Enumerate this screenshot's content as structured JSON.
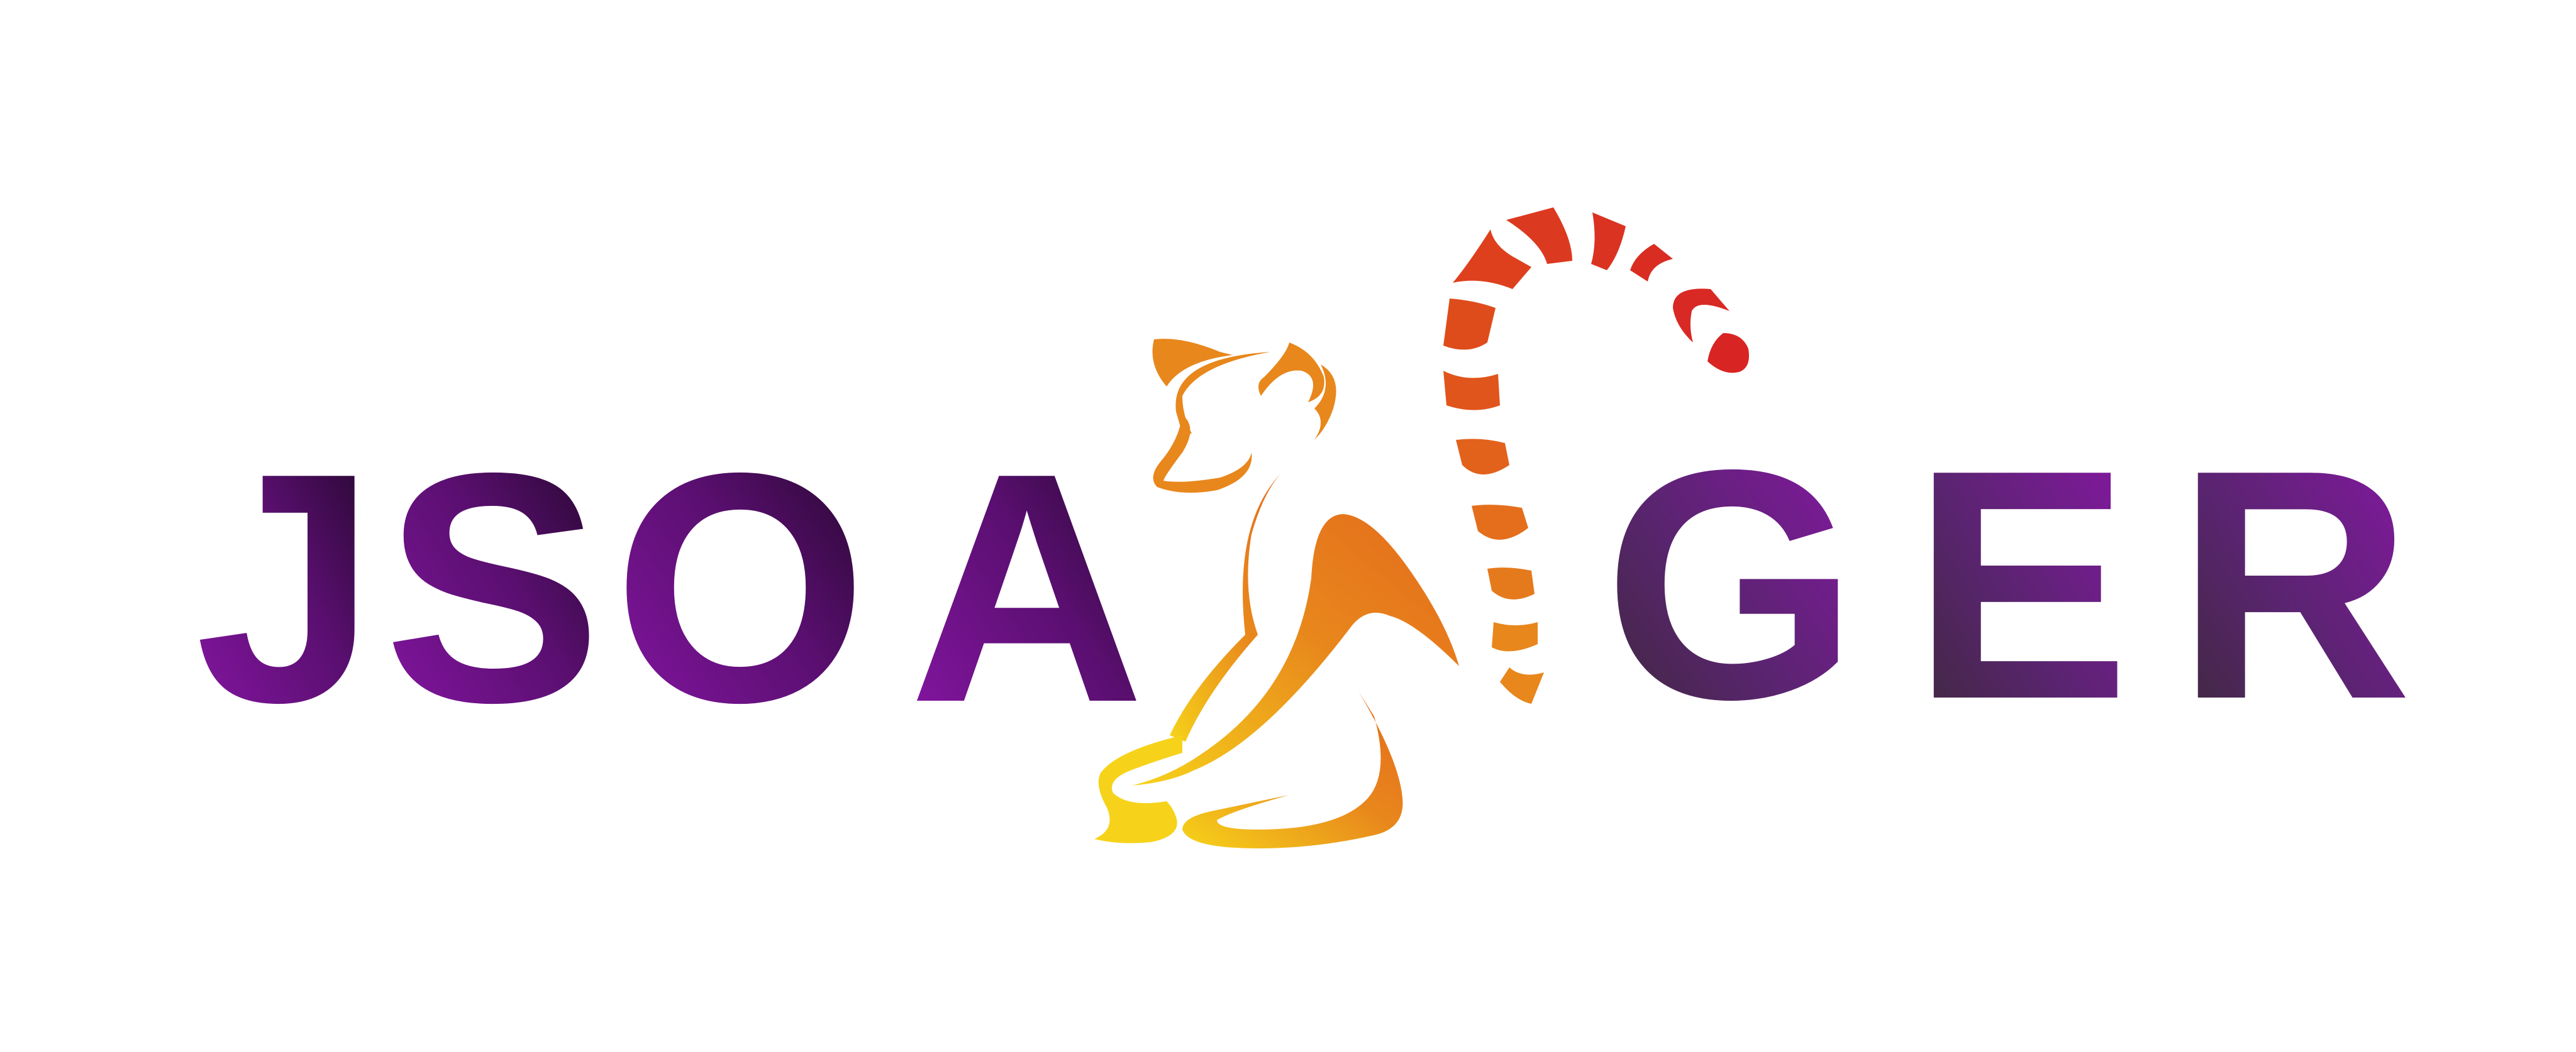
{
  "logo": {
    "wordmark": "JSOAGER",
    "letters": [
      "J",
      "S",
      "O",
      "A",
      "G",
      "E",
      "R"
    ],
    "mark": "lemur-icon"
  },
  "colors": {
    "purple_bright": "#8a16a8",
    "purple_deep": "#3d0a4f",
    "purple_dark": "#1c0622",
    "purple_mid": "#5a2470",
    "gray_purple": "#3e2c3a",
    "yellow": "#f6d31a",
    "orange": "#e8871c",
    "orange_red": "#e04e1c",
    "red": "#d92424"
  }
}
